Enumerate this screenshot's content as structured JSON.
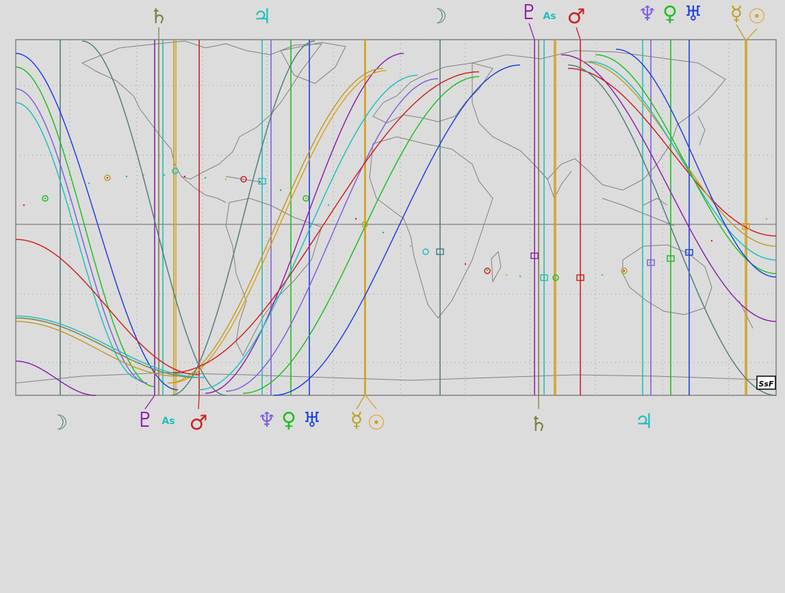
{
  "map": {
    "logo_text": "SsF",
    "background": "#dcdcdc",
    "frame_color": "#7f7f7f",
    "coast_color": "#7f7f7f"
  },
  "planets": [
    {
      "id": "moon",
      "name": "Moon",
      "glyph": "☽",
      "color": "#4f7f7f"
    },
    {
      "id": "saturn",
      "name": "Saturn",
      "glyph": "♄",
      "color": "#7f7f3f"
    },
    {
      "id": "jupiter",
      "name": "Jupiter",
      "glyph": "♃",
      "color": "#1fbfbf"
    },
    {
      "id": "pluto",
      "name": "Pluto",
      "glyph": "♇",
      "color": "#8f1faf"
    },
    {
      "id": "mars",
      "name": "Mars",
      "glyph": "♂",
      "color": "#cf1f1f"
    },
    {
      "id": "neptune",
      "name": "Neptune",
      "glyph": "♆",
      "color": "#7f5fdf"
    },
    {
      "id": "venus",
      "name": "Venus",
      "glyph": "♀",
      "color": "#1fbf1f"
    },
    {
      "id": "uranus",
      "name": "Uranus",
      "glyph": "♅",
      "color": "#1f3fdf"
    },
    {
      "id": "mercury",
      "name": "Mercury",
      "glyph": "☿",
      "color": "#bf9f1f"
    },
    {
      "id": "sun",
      "name": "Sun",
      "glyph": "☉",
      "color": "#df9f1f"
    }
  ],
  "ascendant_label": "As"
}
